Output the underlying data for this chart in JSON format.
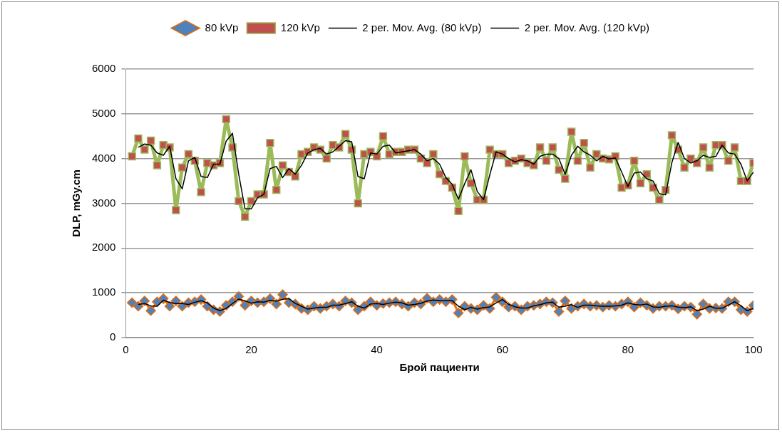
{
  "chart_data": {
    "type": "line",
    "xlabel": "Брой пациенти",
    "ylabel": "DLP, mGy.cm",
    "x": [
      1,
      2,
      3,
      4,
      5,
      6,
      7,
      8,
      9,
      10,
      11,
      12,
      13,
      14,
      15,
      16,
      17,
      18,
      19,
      20,
      21,
      22,
      23,
      24,
      25,
      26,
      27,
      28,
      29,
      30,
      31,
      32,
      33,
      34,
      35,
      36,
      37,
      38,
      39,
      40,
      41,
      42,
      43,
      44,
      45,
      46,
      47,
      48,
      49,
      50,
      51,
      52,
      53,
      54,
      55,
      56,
      57,
      58,
      59,
      60,
      61,
      62,
      63,
      64,
      65,
      66,
      67,
      68,
      69,
      70,
      71,
      72,
      73,
      74,
      75,
      76,
      77,
      78,
      79,
      80,
      81,
      82,
      83,
      84,
      85,
      86,
      87,
      88,
      89,
      90,
      91,
      92,
      93,
      94,
      95,
      96,
      97,
      98,
      99,
      100
    ],
    "xlim": [
      0,
      100
    ],
    "xticks": [
      0,
      20,
      40,
      60,
      80,
      100
    ],
    "ylim": [
      0,
      6000
    ],
    "yticks": [
      0,
      1000,
      2000,
      3000,
      4000,
      5000,
      6000
    ],
    "grid": "y",
    "legend": "top",
    "series": [
      {
        "name": "80 kVp",
        "color": "#4f81bd",
        "marker": "diamond",
        "values": [
          780,
          700,
          820,
          600,
          800,
          870,
          700,
          820,
          700,
          780,
          800,
          850,
          700,
          620,
          580,
          720,
          800,
          920,
          720,
          820,
          780,
          800,
          870,
          750,
          960,
          780,
          750,
          650,
          620,
          700,
          650,
          700,
          750,
          700,
          820,
          780,
          620,
          700,
          800,
          720,
          760,
          780,
          800,
          750,
          700,
          780,
          750,
          880,
          800,
          850,
          800,
          850,
          550,
          700,
          650,
          620,
          720,
          650,
          900,
          800,
          680,
          700,
          620,
          700,
          720,
          750,
          800,
          780,
          580,
          820,
          650,
          700,
          750,
          700,
          720,
          680,
          720,
          700,
          750,
          800,
          680,
          780,
          720,
          650,
          700,
          700,
          720,
          640,
          700,
          680,
          520,
          750,
          650,
          660,
          650,
          800,
          800,
          620,
          580,
          720
        ]
      },
      {
        "name": "120 kVp",
        "color": "#c0504d",
        "marker": "square",
        "values": [
          4050,
          4450,
          4200,
          4400,
          3850,
          4300,
          4250,
          2850,
          3800,
          4100,
          3950,
          3250,
          3900,
          3850,
          3900,
          4880,
          4250,
          3050,
          2700,
          3050,
          3200,
          3200,
          4350,
          3300,
          3850,
          3700,
          3600,
          4100,
          4150,
          4250,
          4200,
          4000,
          4300,
          4250,
          4550,
          4200,
          3000,
          4100,
          4150,
          4050,
          4500,
          4100,
          4150,
          4150,
          4200,
          4200,
          4000,
          3900,
          4100,
          3650,
          3500,
          3350,
          2830,
          4050,
          3450,
          3080,
          3080,
          4200,
          4100,
          4100,
          3900,
          3950,
          4000,
          3900,
          3850,
          4250,
          3950,
          4250,
          3750,
          3550,
          4600,
          3950,
          4350,
          3800,
          4100,
          4000,
          3980,
          4050,
          3350,
          3400,
          3950,
          3450,
          3650,
          3350,
          3080,
          3300,
          4520,
          4200,
          3800,
          4000,
          3900,
          4250,
          3800,
          4300,
          4300,
          3950,
          4250,
          3500,
          3500,
          3900
        ]
      },
      {
        "name": "2 per. Mov. Avg. (80 kVp)",
        "color": "#000000",
        "marker": "none",
        "values": [
          null,
          740,
          760,
          710,
          700,
          835,
          785,
          760,
          760,
          740,
          790,
          825,
          775,
          660,
          600,
          650,
          760,
          860,
          820,
          770,
          800,
          790,
          835,
          810,
          855,
          870,
          765,
          700,
          635,
          660,
          675,
          675,
          725,
          725,
          760,
          800,
          700,
          660,
          750,
          760,
          740,
          770,
          790,
          775,
          725,
          740,
          765,
          815,
          840,
          825,
          825,
          825,
          700,
          625,
          675,
          635,
          670,
          685,
          775,
          850,
          740,
          690,
          660,
          660,
          710,
          735,
          775,
          790,
          680,
          700,
          735,
          675,
          725,
          725,
          710,
          700,
          700,
          710,
          725,
          775,
          740,
          730,
          750,
          685,
          675,
          700,
          710,
          680,
          670,
          690,
          600,
          635,
          700,
          655,
          655,
          725,
          800,
          710,
          600,
          650
        ]
      },
      {
        "name": "2 per. Mov. Avg. (120 kVp)",
        "color": "#000000",
        "marker": "none",
        "values": [
          null,
          4250,
          4325,
          4300,
          4125,
          4075,
          4275,
          3550,
          3325,
          3950,
          4025,
          3600,
          3575,
          3875,
          3875,
          4390,
          4565,
          3650,
          2875,
          2875,
          3125,
          3200,
          3775,
          3825,
          3575,
          3775,
          3650,
          3850,
          4125,
          4200,
          4225,
          4100,
          4150,
          4275,
          4400,
          4375,
          3600,
          3550,
          4125,
          4100,
          4275,
          4300,
          4125,
          4150,
          4175,
          4200,
          4100,
          3950,
          4000,
          3875,
          3575,
          3425,
          3090,
          3440,
          3750,
          3265,
          3080,
          3640,
          4150,
          4100,
          4000,
          3925,
          3975,
          3950,
          3875,
          4050,
          4100,
          4100,
          4000,
          3650,
          4075,
          4275,
          4150,
          4075,
          3950,
          4050,
          3990,
          4015,
          3700,
          3375,
          3675,
          3700,
          3550,
          3500,
          3215,
          3190,
          3910,
          4360,
          4000,
          3900,
          3950,
          4075,
          4025,
          4050,
          4300,
          4125,
          4100,
          3875,
          3500,
          3700
        ]
      }
    ]
  }
}
